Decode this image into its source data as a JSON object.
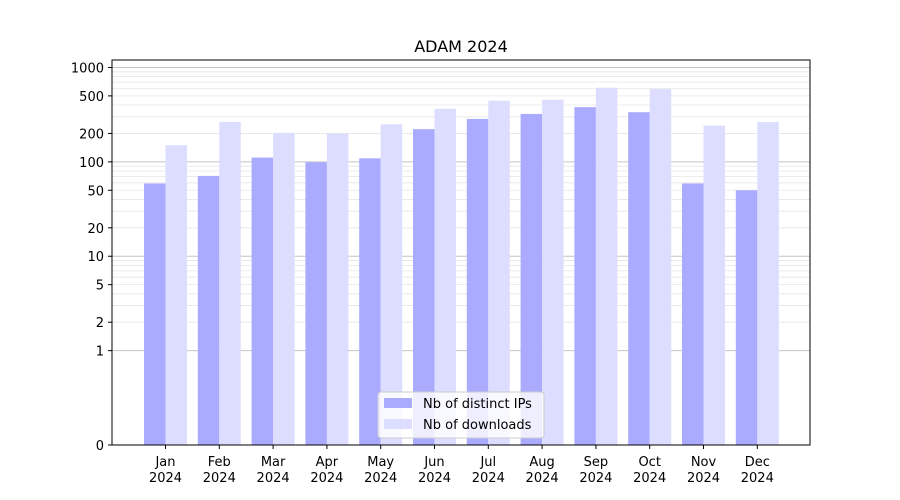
{
  "chart_data": {
    "type": "bar",
    "title": "ADAM 2024",
    "xlabel": "",
    "ylabel": "",
    "yscale": "symlog",
    "ylim": [
      0,
      1200
    ],
    "grid": "horizontal, major and minor",
    "legend_position": "bottom-center",
    "categories": [
      [
        "Jan",
        "2024"
      ],
      [
        "Feb",
        "2024"
      ],
      [
        "Mar",
        "2024"
      ],
      [
        "Apr",
        "2024"
      ],
      [
        "May",
        "2024"
      ],
      [
        "Jun",
        "2024"
      ],
      [
        "Jul",
        "2024"
      ],
      [
        "Aug",
        "2024"
      ],
      [
        "Sep",
        "2024"
      ],
      [
        "Oct",
        "2024"
      ],
      [
        "Nov",
        "2024"
      ],
      [
        "Dec",
        "2024"
      ]
    ],
    "y_ticks": [
      0,
      1,
      2,
      5,
      10,
      20,
      50,
      100,
      200,
      500,
      1000
    ],
    "series": [
      {
        "name": "Nb of distinct IPs",
        "color": "#aaaaff",
        "values": [
          59,
          71,
          111,
          99,
          109,
          222,
          285,
          322,
          380,
          336,
          59,
          50
        ]
      },
      {
        "name": "Nb of downloads",
        "color": "#ddddff",
        "values": [
          150,
          265,
          203,
          199,
          250,
          365,
          445,
          455,
          610,
          590,
          242,
          264
        ]
      }
    ]
  }
}
